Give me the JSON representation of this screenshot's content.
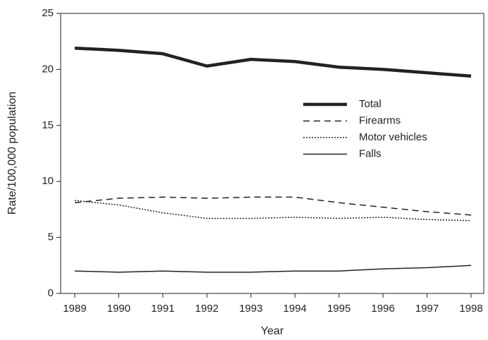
{
  "chart_data": {
    "type": "line",
    "xlabel": "Year",
    "ylabel": "Rate/100,000 population",
    "categories": [
      "1989",
      "1990",
      "1991",
      "1992",
      "1993",
      "1994",
      "1995",
      "1996",
      "1997",
      "1998"
    ],
    "series": [
      {
        "name": "Total",
        "color": "#222222",
        "style": "solid",
        "width": 4.5,
        "values": [
          21.9,
          21.7,
          21.4,
          20.3,
          20.9,
          20.7,
          20.2,
          20.0,
          19.7,
          19.4
        ]
      },
      {
        "name": "Firearms",
        "color": "#222222",
        "style": "dashed",
        "width": 1.5,
        "values": [
          8.1,
          8.5,
          8.6,
          8.5,
          8.6,
          8.6,
          8.1,
          7.7,
          7.3,
          7.0
        ]
      },
      {
        "name": "Motor vehicles",
        "color": "#222222",
        "style": "dotted",
        "width": 1.5,
        "values": [
          8.3,
          7.9,
          7.2,
          6.7,
          6.7,
          6.8,
          6.7,
          6.8,
          6.6,
          6.5
        ]
      },
      {
        "name": "Falls",
        "color": "#222222",
        "style": "solid",
        "width": 1.5,
        "values": [
          2.0,
          1.9,
          2.0,
          1.9,
          1.9,
          2.0,
          2.0,
          2.2,
          2.3,
          2.5
        ]
      }
    ],
    "ylim": [
      0,
      25
    ],
    "yticks": [
      0,
      5,
      10,
      15,
      20,
      25
    ],
    "grid": false
  }
}
